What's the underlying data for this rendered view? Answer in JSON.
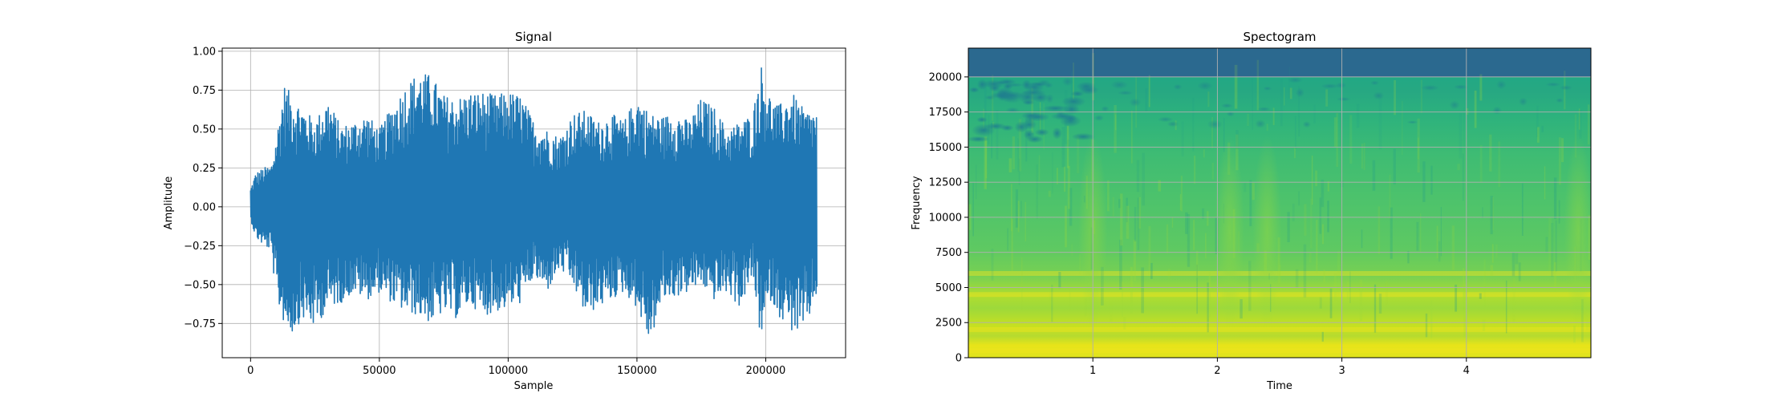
{
  "chart_data": [
    {
      "type": "line",
      "title": "Signal",
      "xlabel": "Sample",
      "ylabel": "Amplitude",
      "xlim": [
        -11000,
        231000
      ],
      "ylim": [
        -0.97,
        1.02
      ],
      "x_ticks": [
        0,
        50000,
        100000,
        150000,
        200000
      ],
      "x_tick_labels": [
        "0",
        "50000",
        "100000",
        "150000",
        "200000"
      ],
      "y_ticks": [
        -0.75,
        -0.5,
        -0.25,
        0.0,
        0.25,
        0.5,
        0.75,
        1.0
      ],
      "y_tick_labels": [
        "−0.75",
        "−0.50",
        "−0.25",
        "0.00",
        "0.25",
        "0.50",
        "0.75",
        "1.00"
      ],
      "grid": true,
      "line_color": "#1f77b4",
      "series": [
        {
          "x": [
            0,
            2000,
            5000,
            8000,
            10000,
            13000,
            16000,
            20000,
            25000,
            30000,
            35000,
            40000,
            45000,
            50000,
            55000,
            60000,
            65000,
            70000,
            75000,
            80000,
            85000,
            90000,
            95000,
            100000,
            105000,
            110000,
            115000,
            120000,
            125000,
            130000,
            135000,
            140000,
            145000,
            150000,
            155000,
            160000,
            165000,
            170000,
            175000,
            180000,
            185000,
            190000,
            195000,
            198000,
            202000,
            205000,
            210000,
            215000,
            220000
          ],
          "upper": [
            0.12,
            0.22,
            0.25,
            0.27,
            0.45,
            0.79,
            0.72,
            0.65,
            0.55,
            0.7,
            0.52,
            0.55,
            0.6,
            0.5,
            0.65,
            0.78,
            0.87,
            0.85,
            0.72,
            0.7,
            0.74,
            0.74,
            0.72,
            0.74,
            0.72,
            0.55,
            0.5,
            0.45,
            0.6,
            0.62,
            0.55,
            0.6,
            0.55,
            0.72,
            0.6,
            0.58,
            0.62,
            0.55,
            0.7,
            0.64,
            0.5,
            0.55,
            0.6,
            0.93,
            0.7,
            0.65,
            0.74,
            0.62,
            0.62
          ],
          "lower": [
            -0.08,
            -0.2,
            -0.25,
            -0.28,
            -0.6,
            -0.75,
            -0.82,
            -0.72,
            -0.78,
            -0.65,
            -0.62,
            -0.55,
            -0.6,
            -0.55,
            -0.62,
            -0.68,
            -0.7,
            -0.75,
            -0.68,
            -0.72,
            -0.62,
            -0.7,
            -0.68,
            -0.65,
            -0.62,
            -0.45,
            -0.55,
            -0.4,
            -0.5,
            -0.7,
            -0.65,
            -0.6,
            -0.55,
            -0.65,
            -0.88,
            -0.6,
            -0.58,
            -0.55,
            -0.5,
            -0.6,
            -0.55,
            -0.65,
            -0.45,
            -0.85,
            -0.6,
            -0.7,
            -0.8,
            -0.82,
            -0.55
          ]
        }
      ]
    },
    {
      "type": "heatmap",
      "title": "Spectogram",
      "xlabel": "Time",
      "ylabel": "Frequency",
      "xlim": [
        0.0,
        5.0
      ],
      "ylim": [
        0,
        22050
      ],
      "x_ticks": [
        1,
        2,
        3,
        4
      ],
      "x_tick_labels": [
        "1",
        "2",
        "3",
        "4"
      ],
      "y_ticks": [
        0,
        2500,
        5000,
        7500,
        10000,
        12500,
        15000,
        17500,
        20000
      ],
      "y_tick_labels": [
        "0",
        "2500",
        "5000",
        "7500",
        "10000",
        "12500",
        "15000",
        "17500",
        "20000"
      ],
      "grid": true,
      "colormap": "viridis",
      "cutoff_frequency": 20000,
      "bright_bands": [
        500,
        2000,
        4500,
        6000
      ],
      "above_cutoff_color": "#2c6990"
    }
  ]
}
